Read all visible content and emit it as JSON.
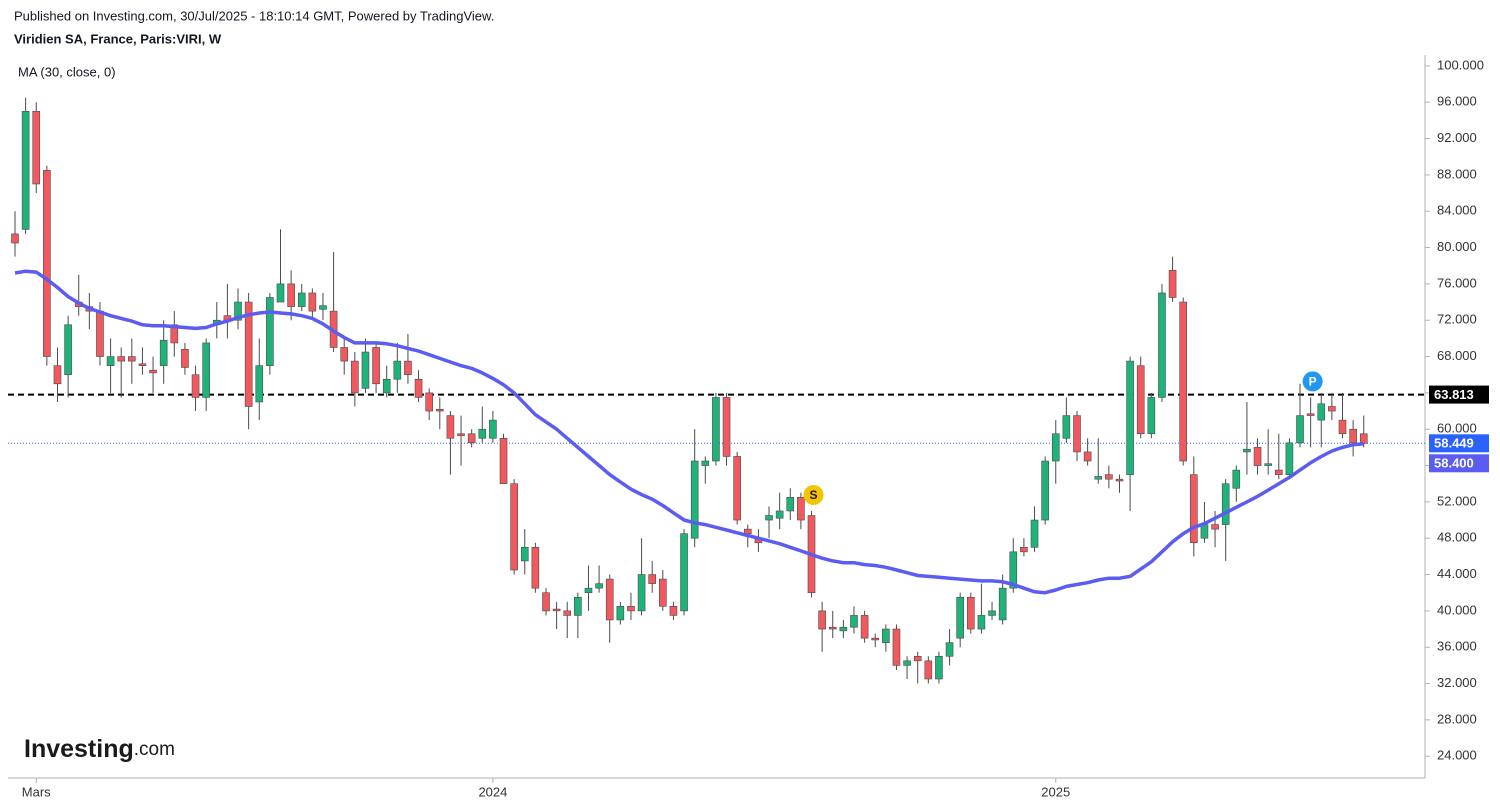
{
  "header": {
    "published": "Published on Investing.com, 30/Jul/2025 - 18:10:14 GMT, Powered by TradingView.",
    "title": "Viridien SA, France, Paris:VIRI, W",
    "indicator": "MA (30, close, 0)",
    "logo": "Investing",
    "logo_suffix": ".com"
  },
  "chart_data": {
    "type": "candlestick",
    "categories": [
      null,
      null,
      "Mars",
      null,
      null,
      null,
      null,
      null,
      null,
      null,
      null,
      null,
      null,
      null,
      null,
      null,
      null,
      null,
      null,
      null,
      null,
      null,
      null,
      null,
      null,
      null,
      null,
      null,
      null,
      null,
      null,
      null,
      null,
      null,
      null,
      null,
      null,
      null,
      null,
      null,
      null,
      null,
      null,
      null,
      null,
      "2024",
      null,
      null,
      null,
      null,
      null,
      null,
      null,
      null,
      null,
      null,
      null,
      null,
      null,
      null,
      null,
      null,
      null,
      null,
      null,
      null,
      null,
      null,
      null,
      null,
      null,
      null,
      null,
      null,
      null,
      null,
      null,
      null,
      null,
      null,
      null,
      null,
      null,
      null,
      null,
      null,
      null,
      null,
      null,
      null,
      null,
      null,
      null,
      null,
      null,
      null,
      null,
      null,
      "2025",
      null,
      null,
      null,
      null,
      null,
      null,
      null,
      null,
      null,
      null,
      null,
      null,
      null,
      null,
      null,
      null,
      null,
      null,
      null,
      null,
      null,
      null,
      null,
      null,
      null,
      null,
      null,
      null,
      null
    ],
    "open": [
      81.5,
      82,
      95,
      88.5,
      67,
      66,
      74,
      73.5,
      73,
      67,
      68,
      68,
      67.2,
      66.5,
      67,
      71.5,
      68.8,
      66,
      63.5,
      71.5,
      72.5,
      72,
      74,
      63,
      67,
      74,
      76,
      73.5,
      75,
      73.2,
      73,
      69,
      67.5,
      64.5,
      69,
      64,
      65.5,
      67.5,
      65.5,
      64,
      62.2,
      61.5,
      59.5,
      59.5,
      59,
      59,
      59,
      54,
      45.5,
      47,
      42,
      40.2,
      40,
      39.5,
      42,
      42.5,
      43.5,
      39,
      40.5,
      40,
      44,
      43.5,
      40.5,
      40,
      48,
      56,
      56.5,
      63.5,
      57,
      49,
      48,
      50,
      50.2,
      51,
      52.5,
      50.5,
      40,
      38.2,
      37.8,
      38.2,
      39.5,
      37,
      36.5,
      38,
      34,
      35,
      34.5,
      32.5,
      35,
      37,
      41.5,
      38,
      39.5,
      39,
      42.5,
      47,
      47,
      50,
      56.5,
      59,
      61.5,
      57.5,
      54.5,
      55,
      54.5,
      55,
      67,
      59.5,
      63.5,
      77.5,
      74,
      55,
      48,
      49.5,
      49.5,
      53.5,
      57.5,
      58,
      56,
      55.5,
      55,
      58.5,
      61.7,
      61,
      62.5,
      61,
      60,
      59.5
    ],
    "high": [
      84,
      96.5,
      96,
      89,
      69,
      72.5,
      77,
      75,
      74,
      70,
      69,
      70,
      69,
      68,
      72,
      73,
      69.5,
      67,
      70,
      74,
      76,
      75.5,
      75,
      70,
      75,
      82,
      77.5,
      76,
      75.5,
      75,
      79.5,
      70,
      68.5,
      70,
      69.5,
      67,
      69.5,
      70.5,
      66.5,
      64.5,
      63.5,
      62,
      61.5,
      60,
      62.5,
      62,
      59.5,
      54.5,
      49,
      47.5,
      42.5,
      41,
      41,
      42,
      45,
      45,
      44,
      41,
      42,
      48,
      45.5,
      44.5,
      41,
      49,
      60,
      57,
      64,
      64,
      57.5,
      49.5,
      49,
      51.5,
      53,
      53.5,
      53,
      51,
      41,
      40,
      39,
      40.5,
      40,
      37.5,
      38.5,
      38.5,
      35,
      35.5,
      35,
      35.5,
      38,
      42,
      42,
      43,
      41,
      44,
      48,
      48,
      51.5,
      57,
      61,
      63.5,
      62,
      59,
      59,
      56,
      55,
      68,
      68,
      64,
      76,
      79,
      74.5,
      57,
      52,
      51,
      54.5,
      56,
      63,
      59,
      60,
      59.5,
      59,
      65,
      63.5,
      64,
      64,
      64,
      61,
      61.5
    ],
    "low": [
      79,
      81.5,
      86,
      67,
      63,
      63.5,
      72.5,
      71,
      67,
      64,
      63.5,
      65,
      66,
      64,
      65,
      68,
      66,
      62,
      62,
      70,
      70,
      71,
      60,
      61,
      66,
      74,
      72,
      73,
      72,
      72,
      68.5,
      66,
      62.5,
      64,
      64,
      63.5,
      64,
      65,
      63,
      61,
      60,
      55,
      56,
      58,
      58.5,
      58.5,
      54,
      44,
      44,
      42,
      39.5,
      38,
      37,
      37,
      40,
      42,
      36.5,
      38.5,
      39,
      39.5,
      42,
      40,
      39,
      39.5,
      47,
      54,
      56,
      56,
      49.5,
      47,
      46.5,
      48,
      49,
      50,
      49,
      41.5,
      35.5,
      37,
      37,
      37.5,
      36.5,
      36,
      35.5,
      33.5,
      32.5,
      32,
      32,
      32,
      34,
      36,
      37.5,
      37.5,
      39,
      38.5,
      42,
      46,
      46.5,
      49.5,
      54,
      58.5,
      56.5,
      56,
      54,
      53.5,
      53,
      51,
      59,
      59,
      63,
      74,
      56,
      46,
      47.5,
      47,
      45.5,
      52,
      55,
      55,
      55,
      54.5,
      54.5,
      58,
      58,
      58,
      61,
      59,
      57,
      58
    ],
    "close": [
      80.5,
      95,
      87,
      68,
      65,
      71.5,
      73.5,
      73,
      68,
      68,
      67.5,
      67.5,
      67,
      66.2,
      69.8,
      69.5,
      66.8,
      63.5,
      69.5,
      72,
      72,
      74,
      62.5,
      67,
      74.5,
      76,
      73.5,
      75,
      73,
      73.6,
      69,
      67.5,
      64,
      68.5,
      65,
      65.5,
      67.5,
      66,
      63.5,
      62,
      62,
      59,
      59.3,
      58.5,
      60,
      61,
      54,
      44.5,
      47,
      42.5,
      40,
      40,
      39.5,
      41.5,
      42.5,
      43,
      39,
      40.5,
      40,
      44,
      43,
      40.5,
      39.5,
      48.5,
      56.5,
      56.5,
      63.5,
      57,
      50,
      48.5,
      47.5,
      50.5,
      51,
      52.5,
      50,
      42,
      38,
      38,
      38.2,
      39.5,
      37,
      36.8,
      38,
      34,
      34.5,
      34.5,
      32.5,
      35,
      36.5,
      41.5,
      38,
      39.5,
      40,
      42.5,
      46.5,
      46.5,
      50,
      56.5,
      59.5,
      61.5,
      57.5,
      56.5,
      54.8,
      54.5,
      54.3,
      67.5,
      59.5,
      63.5,
      75,
      74.5,
      56.5,
      47.5,
      49.5,
      49,
      54,
      55.5,
      57.8,
      56,
      56.2,
      55,
      58.5,
      61.5,
      61.5,
      62.8,
      62,
      59.5,
      58.5,
      58.449
    ],
    "up_color": "#1fb37a",
    "down_color": "#f05a5f",
    "wick_color": "#4a4a4a",
    "ma": {
      "color": "#5b5cf2",
      "values": [
        77.2,
        77.4,
        77.3,
        76.5,
        75.6,
        74.6,
        73.9,
        73.3,
        72.9,
        72.5,
        72.2,
        71.9,
        71.5,
        71.4,
        71.4,
        71.3,
        71.2,
        71.1,
        71.2,
        71.6,
        71.9,
        72.3,
        72.6,
        72.8,
        72.9,
        72.8,
        72.7,
        72.5,
        72.2,
        71.6,
        70.8,
        70.1,
        69.5,
        69.5,
        69.5,
        69.4,
        69.2,
        68.9,
        68.6,
        68.2,
        67.8,
        67.4,
        67.0,
        66.7,
        66.2,
        65.6,
        64.9,
        64.0,
        62.8,
        61.6,
        60.8,
        60.0,
        59.0,
        58.0,
        57.0,
        56.0,
        55.0,
        54.2,
        53.4,
        52.8,
        52.3,
        51.6,
        50.8,
        50.0,
        49.7,
        49.5,
        49.2,
        48.9,
        48.6,
        48.3,
        48.0,
        47.7,
        47.4,
        47.0,
        46.6,
        46.2,
        45.8,
        45.5,
        45.3,
        45.3,
        45.1,
        45.0,
        44.8,
        44.5,
        44.2,
        43.9,
        43.8,
        43.7,
        43.6,
        43.5,
        43.4,
        43.3,
        43.3,
        43.2,
        42.9,
        42.5,
        42.1,
        42.0,
        42.3,
        42.7,
        42.9,
        43.1,
        43.4,
        43.6,
        43.6,
        43.8,
        44.6,
        45.4,
        46.5,
        47.6,
        48.5,
        49.2,
        49.6,
        50.2,
        50.8,
        51.4,
        52.0,
        52.6,
        53.3,
        54.0,
        54.7,
        55.5,
        56.3,
        57.0,
        57.6,
        58.0,
        58.3,
        58.4
      ],
      "last_label": {
        "value": 58.4,
        "label": "58.400"
      }
    },
    "level": {
      "value": 63.813,
      "color": "#000000"
    },
    "last_price": {
      "value": 58.449,
      "color": "#2962ff"
    },
    "signals": [
      null,
      null,
      null,
      null,
      null,
      null,
      null,
      null,
      null,
      null,
      null,
      null,
      null,
      null,
      null,
      null,
      null,
      null,
      null,
      null,
      null,
      null,
      null,
      null,
      null,
      null,
      null,
      null,
      null,
      null,
      null,
      null,
      null,
      null,
      null,
      null,
      null,
      null,
      null,
      null,
      null,
      null,
      null,
      null,
      null,
      null,
      null,
      null,
      null,
      null,
      null,
      null,
      null,
      null,
      null,
      null,
      null,
      null,
      null,
      null,
      null,
      null,
      null,
      null,
      null,
      null,
      null,
      null,
      null,
      null,
      null,
      null,
      null,
      null,
      null,
      "S",
      null,
      null,
      null,
      null,
      null,
      null,
      null,
      null,
      null,
      null,
      null,
      null,
      null,
      null,
      null,
      null,
      null,
      null,
      null,
      null,
      null,
      null,
      null,
      null,
      null,
      null,
      null,
      null,
      null,
      null,
      null,
      null,
      null,
      null,
      null,
      null,
      null,
      null,
      null,
      null,
      null,
      null,
      null,
      null,
      null,
      null,
      "P",
      null,
      null,
      null,
      null,
      null
    ],
    "ylim": [
      21.6,
      101.2
    ],
    "yticks": [
      {
        "value": 24,
        "label": "24.000"
      },
      {
        "value": 28,
        "label": "28.000"
      },
      {
        "value": 32,
        "label": "32.000"
      },
      {
        "value": 36,
        "label": "36.000"
      },
      {
        "value": 40,
        "label": "40.000"
      },
      {
        "value": 44,
        "label": "44.000"
      },
      {
        "value": 48,
        "label": "48.000"
      },
      {
        "value": 52,
        "label": "52.000"
      },
      {
        "value": 56,
        "label": "56.000"
      },
      {
        "value": 60,
        "label": "60.000"
      },
      {
        "value": 64,
        "label": "64.000"
      },
      {
        "value": 68,
        "label": "68.000"
      },
      {
        "value": 72,
        "label": "72.000"
      },
      {
        "value": 76,
        "label": "76.000"
      },
      {
        "value": 80,
        "label": "80.000"
      },
      {
        "value": 84,
        "label": "84.000"
      },
      {
        "value": 88,
        "label": "88.000"
      },
      {
        "value": 92,
        "label": "92.000"
      },
      {
        "value": 96,
        "label": "96.000"
      },
      {
        "value": 100,
        "label": "100.000"
      }
    ],
    "grid": false
  }
}
